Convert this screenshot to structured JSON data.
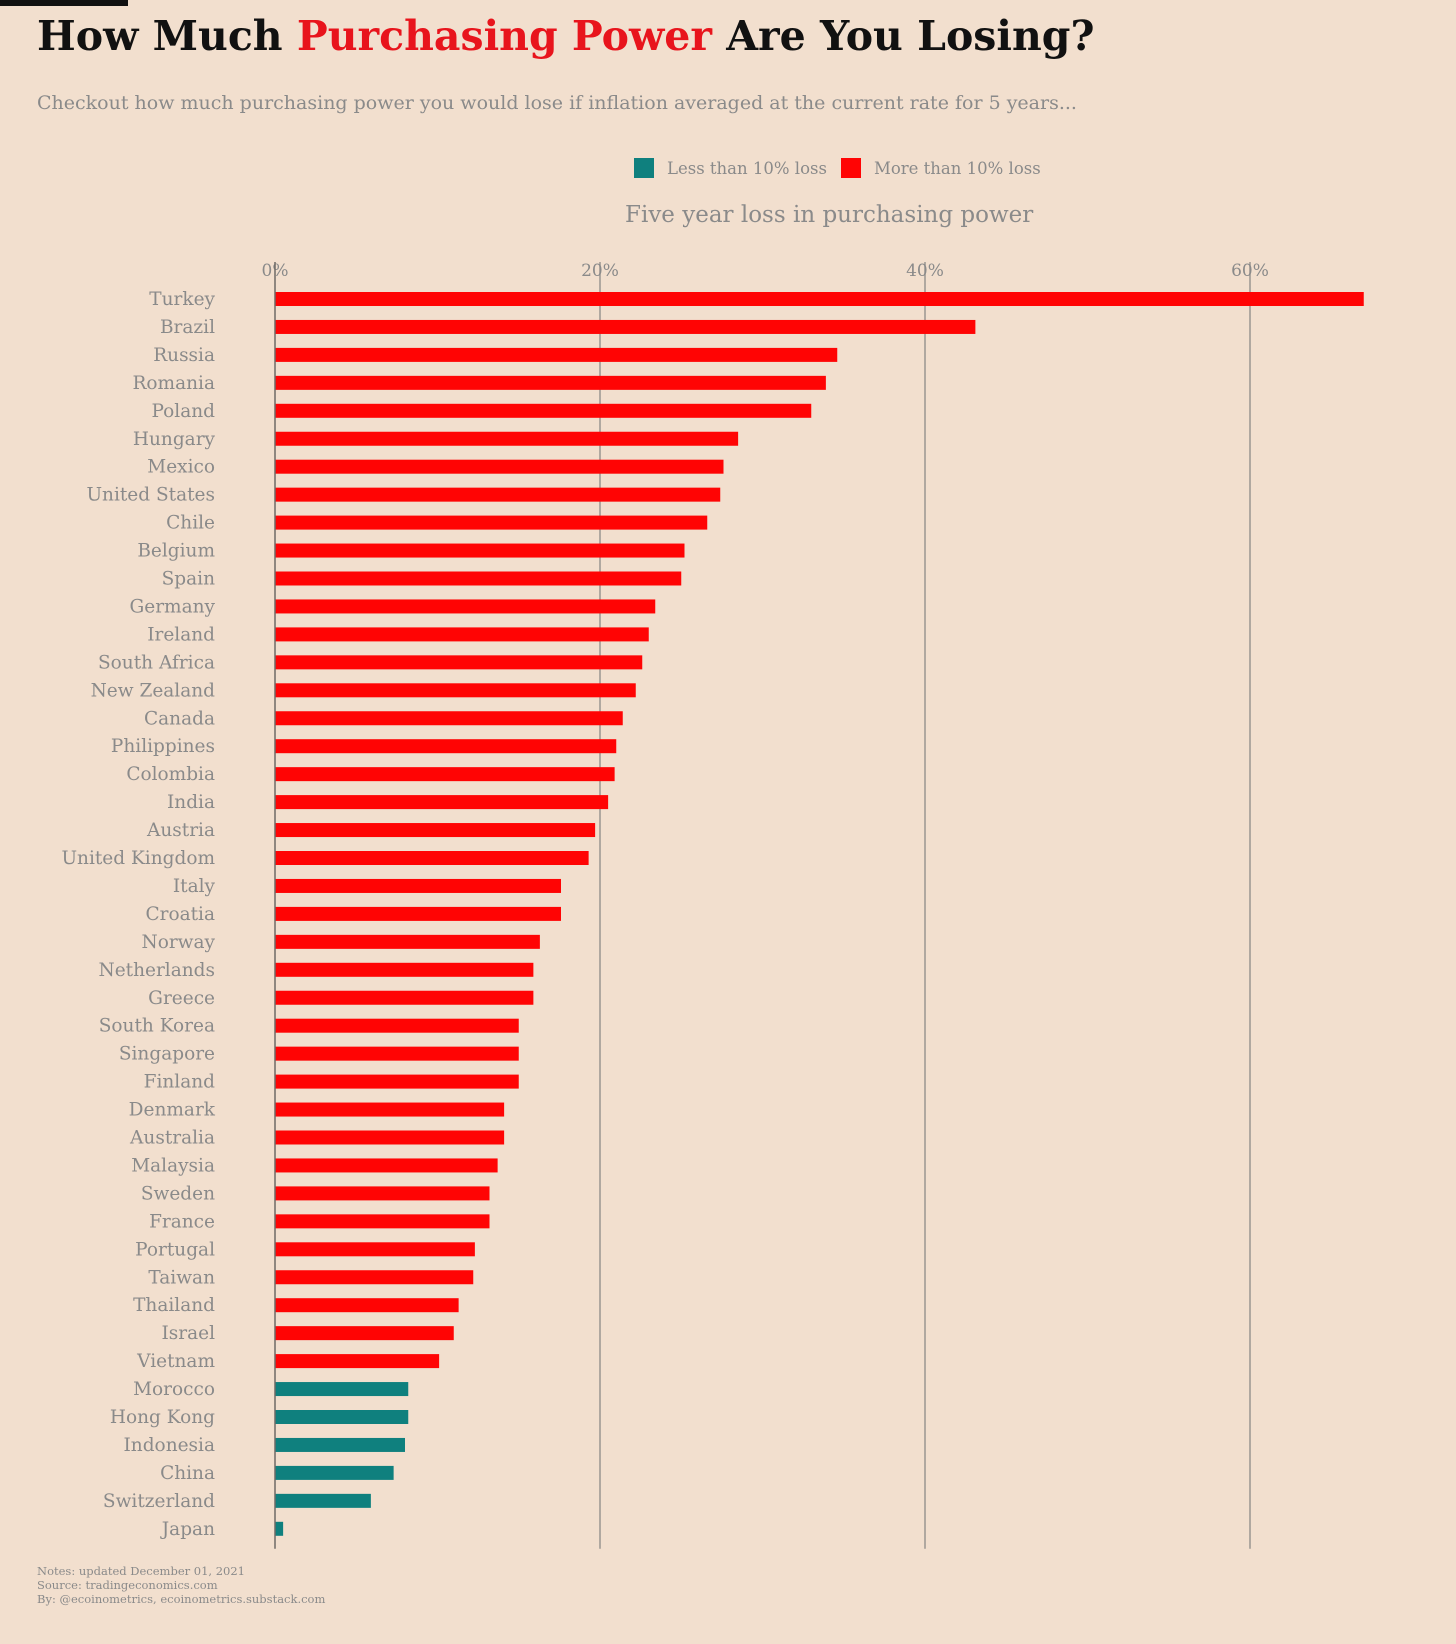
{
  "header": {
    "title_pre": "How Much ",
    "title_highlight": "Purchasing Power",
    "title_post": " Are You Losing?",
    "subtitle": "Checkout how much purchasing power you would lose if inflation averaged at the current rate for 5 years..."
  },
  "legend": {
    "items": [
      {
        "label": "Less than 10% loss",
        "color": "#0F807E"
      },
      {
        "label": "More than 10% loss",
        "color": "#FF0404"
      }
    ]
  },
  "chart_data": {
    "type": "bar",
    "orientation": "horizontal",
    "title": "Five year loss in purchasing power",
    "x_ticks": [
      "0%",
      "20%",
      "40%",
      "60%"
    ],
    "xlim": [
      0,
      70
    ],
    "grid": true,
    "legend_position": "top-center",
    "threshold": 10,
    "colors": {
      "below": "#0F807E",
      "above": "#FF0404"
    },
    "categories": [
      "Turkey",
      "Brazil",
      "Russia",
      "Romania",
      "Poland",
      "Hungary",
      "Mexico",
      "United States",
      "Chile",
      "Belgium",
      "Spain",
      "Germany",
      "Ireland",
      "South Africa",
      "New Zealand",
      "Canada",
      "Philippines",
      "Colombia",
      "India",
      "Austria",
      "United Kingdom",
      "Italy",
      "Croatia",
      "Norway",
      "Netherlands",
      "Greece",
      "South Korea",
      "Singapore",
      "Finland",
      "Denmark",
      "Australia",
      "Malaysia",
      "Sweden",
      "France",
      "Portugal",
      "Taiwan",
      "Thailand",
      "Israel",
      "Vietnam",
      "Morocco",
      "Hong Kong",
      "Indonesia",
      "China",
      "Switzerland",
      "Japan"
    ],
    "values": [
      67.0,
      43.1,
      34.6,
      33.9,
      33.0,
      28.5,
      27.6,
      27.4,
      26.6,
      25.2,
      25.0,
      23.4,
      23.0,
      22.6,
      22.2,
      21.4,
      21.0,
      20.9,
      20.5,
      19.7,
      19.3,
      17.6,
      17.6,
      16.3,
      15.9,
      15.9,
      15.0,
      15.0,
      15.0,
      14.1,
      14.1,
      13.7,
      13.2,
      13.2,
      12.3,
      12.2,
      11.3,
      11.0,
      10.1,
      8.2,
      8.2,
      8.0,
      7.3,
      5.9,
      0.5
    ]
  },
  "footer": {
    "notes": "Notes: updated December 01, 2021",
    "source": "Source: tradingeconomics.com",
    "by": "By: @ecoinometrics, ecoinometrics.substack.com"
  }
}
